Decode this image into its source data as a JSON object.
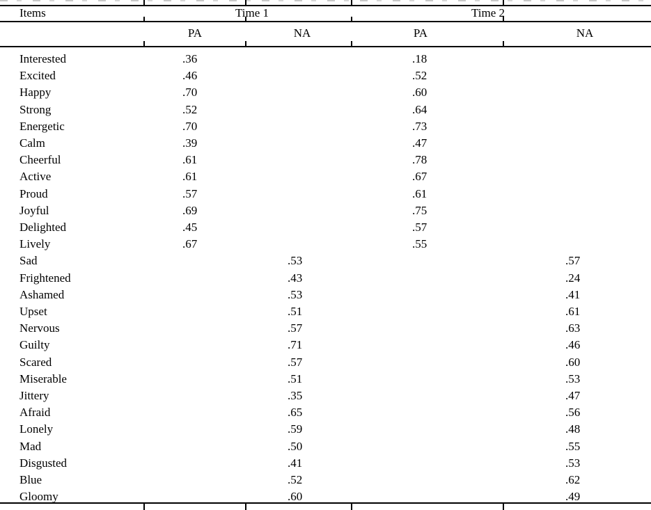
{
  "table": {
    "header": {
      "items": "Items",
      "time1": "Time 1",
      "time2": "Time 2"
    },
    "subheader": {
      "t1_pa": "PA",
      "t1_na": "NA",
      "t2_pa": "PA",
      "t2_na": "NA"
    },
    "rows": [
      {
        "item": "Interested",
        "t1_pa": ".36",
        "t1_na": "",
        "t2_pa": ".18",
        "t2_na": ""
      },
      {
        "item": "Excited",
        "t1_pa": ".46",
        "t1_na": "",
        "t2_pa": ".52",
        "t2_na": ""
      },
      {
        "item": "Happy",
        "t1_pa": ".70",
        "t1_na": "",
        "t2_pa": ".60",
        "t2_na": ""
      },
      {
        "item": "Strong",
        "t1_pa": ".52",
        "t1_na": "",
        "t2_pa": ".64",
        "t2_na": ""
      },
      {
        "item": "Energetic",
        "t1_pa": ".70",
        "t1_na": "",
        "t2_pa": ".73",
        "t2_na": ""
      },
      {
        "item": "Calm",
        "t1_pa": ".39",
        "t1_na": "",
        "t2_pa": ".47",
        "t2_na": ""
      },
      {
        "item": "Cheerful",
        "t1_pa": ".61",
        "t1_na": "",
        "t2_pa": ".78",
        "t2_na": ""
      },
      {
        "item": "Active",
        "t1_pa": ".61",
        "t1_na": "",
        "t2_pa": ".67",
        "t2_na": ""
      },
      {
        "item": "Proud",
        "t1_pa": ".57",
        "t1_na": "",
        "t2_pa": ".61",
        "t2_na": ""
      },
      {
        "item": "Joyful",
        "t1_pa": ".69",
        "t1_na": "",
        "t2_pa": ".75",
        "t2_na": ""
      },
      {
        "item": "Delighted",
        "t1_pa": ".45",
        "t1_na": "",
        "t2_pa": ".57",
        "t2_na": ""
      },
      {
        "item": "Lively",
        "t1_pa": ".67",
        "t1_na": "",
        "t2_pa": ".55",
        "t2_na": ""
      },
      {
        "item": "Sad",
        "t1_pa": "",
        "t1_na": ".53",
        "t2_pa": "",
        "t2_na": ".57"
      },
      {
        "item": "Frightened",
        "t1_pa": "",
        "t1_na": ".43",
        "t2_pa": "",
        "t2_na": ".24"
      },
      {
        "item": "Ashamed",
        "t1_pa": "",
        "t1_na": ".53",
        "t2_pa": "",
        "t2_na": ".41"
      },
      {
        "item": "Upset",
        "t1_pa": "",
        "t1_na": ".51",
        "t2_pa": "",
        "t2_na": ".61"
      },
      {
        "item": "Nervous",
        "t1_pa": "",
        "t1_na": ".57",
        "t2_pa": "",
        "t2_na": ".63"
      },
      {
        "item": "Guilty",
        "t1_pa": "",
        "t1_na": ".71",
        "t2_pa": "",
        "t2_na": ".46"
      },
      {
        "item": "Scared",
        "t1_pa": "",
        "t1_na": ".57",
        "t2_pa": "",
        "t2_na": ".60"
      },
      {
        "item": "Miserable",
        "t1_pa": "",
        "t1_na": ".51",
        "t2_pa": "",
        "t2_na": ".53"
      },
      {
        "item": "Jittery",
        "t1_pa": "",
        "t1_na": ".35",
        "t2_pa": "",
        "t2_na": ".47"
      },
      {
        "item": "Afraid",
        "t1_pa": "",
        "t1_na": ".65",
        "t2_pa": "",
        "t2_na": ".56"
      },
      {
        "item": "Lonely",
        "t1_pa": "",
        "t1_na": ".59",
        "t2_pa": "",
        "t2_na": ".48"
      },
      {
        "item": "Mad",
        "t1_pa": "",
        "t1_na": ".50",
        "t2_pa": "",
        "t2_na": ".55"
      },
      {
        "item": "Disgusted",
        "t1_pa": "",
        "t1_na": ".41",
        "t2_pa": "",
        "t2_na": ".53"
      },
      {
        "item": "Blue",
        "t1_pa": "",
        "t1_na": ".52",
        "t2_pa": "",
        "t2_na": ".62"
      },
      {
        "item": "Gloomy",
        "t1_pa": "",
        "t1_na": ".60",
        "t2_pa": "",
        "t2_na": ".49"
      }
    ]
  },
  "colors": {
    "text": "#000000",
    "rule": "#000000",
    "background": "#ffffff"
  }
}
